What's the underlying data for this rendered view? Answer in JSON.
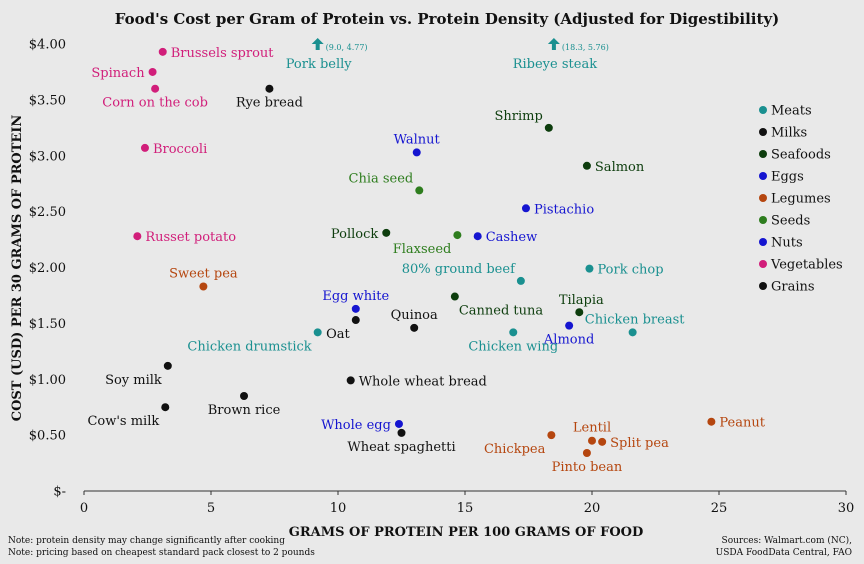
{
  "chart_data": {
    "type": "scatter",
    "title": "Food's Cost per Gram of Protein vs. Protein Density (Adjusted for Digestibility)",
    "xlabel": "GRAMS OF PROTEIN PER 100 GRAMS OF FOOD",
    "ylabel": "COST (USD) PER 30 GRAMS OF PROTEIN",
    "xlim": [
      0,
      30
    ],
    "ylim": [
      0,
      4
    ],
    "x_ticks": [
      "0",
      "5",
      "10",
      "15",
      "20",
      "25",
      "30"
    ],
    "y_ticks": [
      "$-",
      "$0.50",
      "$1.00",
      "$1.50",
      "$2.00",
      "$2.50",
      "$3.00",
      "$3.50",
      "$4.00"
    ],
    "grid": false,
    "legend_position": "right",
    "categories": [
      {
        "name": "Meats",
        "color": "#1a9090"
      },
      {
        "name": "Milks",
        "color": "#111111"
      },
      {
        "name": "Seafoods",
        "color": "#0d3d0d"
      },
      {
        "name": "Eggs",
        "color": "#1515d0"
      },
      {
        "name": "Legumes",
        "color": "#b5460f"
      },
      {
        "name": "Seeds",
        "color": "#2e7d1e"
      },
      {
        "name": "Nuts",
        "color": "#1515d0"
      },
      {
        "name": "Vegetables",
        "color": "#d11e7a"
      },
      {
        "name": "Grains",
        "color": "#111111"
      }
    ],
    "points": [
      {
        "name": "Brussels sprout",
        "x": 3.1,
        "y": 3.93,
        "category": "Vegetables",
        "lp": "r"
      },
      {
        "name": "Spinach",
        "x": 2.7,
        "y": 3.75,
        "category": "Vegetables",
        "lp": "l"
      },
      {
        "name": "Corn on the cob",
        "x": 2.8,
        "y": 3.6,
        "category": "Vegetables",
        "lp": "b"
      },
      {
        "name": "Broccoli",
        "x": 2.4,
        "y": 3.07,
        "category": "Vegetables",
        "lp": "r"
      },
      {
        "name": "Russet potato",
        "x": 2.1,
        "y": 2.28,
        "category": "Vegetables",
        "lp": "r"
      },
      {
        "name": "Rye bread",
        "x": 7.3,
        "y": 3.6,
        "category": "Grains",
        "lp": "b"
      },
      {
        "name": "Oat",
        "x": 10.7,
        "y": 1.53,
        "category": "Grains",
        "lp": "bl"
      },
      {
        "name": "Quinoa",
        "x": 13.0,
        "y": 1.46,
        "category": "Grains",
        "lp": "a"
      },
      {
        "name": "Whole wheat bread",
        "x": 10.5,
        "y": 0.99,
        "category": "Grains",
        "lp": "r"
      },
      {
        "name": "Brown rice",
        "x": 6.3,
        "y": 0.85,
        "category": "Grains",
        "lp": "b"
      },
      {
        "name": "Wheat spaghetti",
        "x": 12.5,
        "y": 0.52,
        "category": "Grains",
        "lp": "b"
      },
      {
        "name": "Soy milk",
        "x": 3.3,
        "y": 1.12,
        "category": "Milks",
        "lp": "bl"
      },
      {
        "name": "Cow's milk",
        "x": 3.2,
        "y": 0.75,
        "category": "Milks",
        "lp": "bl"
      },
      {
        "name": "Shrimp",
        "x": 18.3,
        "y": 3.25,
        "category": "Seafoods",
        "lp": "tl"
      },
      {
        "name": "Salmon",
        "x": 19.8,
        "y": 2.91,
        "category": "Seafoods",
        "lp": "r"
      },
      {
        "name": "Pollock",
        "x": 11.9,
        "y": 2.31,
        "category": "Seafoods",
        "lp": "l"
      },
      {
        "name": "Canned tuna",
        "x": 14.6,
        "y": 1.74,
        "category": "Seafoods",
        "lp": "br"
      },
      {
        "name": "Tilapia",
        "x": 19.5,
        "y": 1.6,
        "category": "Seafoods",
        "lp": "tr"
      },
      {
        "name": "Chia seed",
        "x": 13.2,
        "y": 2.69,
        "category": "Seeds",
        "lp": "tl"
      },
      {
        "name": "Flaxseed",
        "x": 14.7,
        "y": 2.29,
        "category": "Seeds",
        "lp": "bl"
      },
      {
        "name": "Walnut",
        "x": 13.1,
        "y": 3.03,
        "category": "Nuts",
        "lp": "a"
      },
      {
        "name": "Pistachio",
        "x": 17.4,
        "y": 2.53,
        "category": "Nuts",
        "lp": "r"
      },
      {
        "name": "Cashew",
        "x": 15.5,
        "y": 2.28,
        "category": "Nuts",
        "lp": "r"
      },
      {
        "name": "Almond",
        "x": 19.1,
        "y": 1.48,
        "category": "Nuts",
        "lp": "b"
      },
      {
        "name": "Egg white",
        "x": 10.7,
        "y": 1.63,
        "category": "Eggs",
        "lp": "a"
      },
      {
        "name": "Whole egg",
        "x": 12.4,
        "y": 0.6,
        "category": "Eggs",
        "lp": "l"
      },
      {
        "name": "80% ground beef",
        "x": 17.2,
        "y": 1.88,
        "category": "Meats",
        "lp": "tl"
      },
      {
        "name": "Pork chop",
        "x": 19.9,
        "y": 1.99,
        "category": "Meats",
        "lp": "r"
      },
      {
        "name": "Chicken drumstick",
        "x": 9.2,
        "y": 1.42,
        "category": "Meats",
        "lp": "bl"
      },
      {
        "name": "Chicken wing",
        "x": 16.9,
        "y": 1.42,
        "category": "Meats",
        "lp": "b"
      },
      {
        "name": "Chicken breast",
        "x": 21.6,
        "y": 1.42,
        "category": "Meats",
        "lp": "t"
      },
      {
        "name": "Sweet pea",
        "x": 4.7,
        "y": 1.83,
        "category": "Legumes",
        "lp": "a"
      },
      {
        "name": "Chickpea",
        "x": 18.4,
        "y": 0.5,
        "category": "Legumes",
        "lp": "bl"
      },
      {
        "name": "Lentil",
        "x": 20.0,
        "y": 0.45,
        "category": "Legumes",
        "lp": "a"
      },
      {
        "name": "Split pea",
        "x": 20.4,
        "y": 0.44,
        "category": "Legumes",
        "lp": "r"
      },
      {
        "name": "Pinto bean",
        "x": 19.8,
        "y": 0.34,
        "category": "Legumes",
        "lp": "b"
      },
      {
        "name": "Peanut",
        "x": 24.7,
        "y": 0.62,
        "category": "Legumes",
        "lp": "r"
      }
    ],
    "off_scale": [
      {
        "name": "Pork belly",
        "x_display": 9.2,
        "value_label": "(9.0, 4.77)",
        "category": "Meats"
      },
      {
        "name": "Ribeye steak",
        "x_display": 18.5,
        "value_label": "(18.3, 5.76)",
        "category": "Meats"
      }
    ]
  },
  "notes": [
    "Note: protein density may change significantly after cooking",
    "Note: pricing based on cheapest standard pack closest to 2 pounds"
  ],
  "sources": [
    "Sources: Walmart.com (NC),",
    "USDA FoodData Central, FAO"
  ]
}
